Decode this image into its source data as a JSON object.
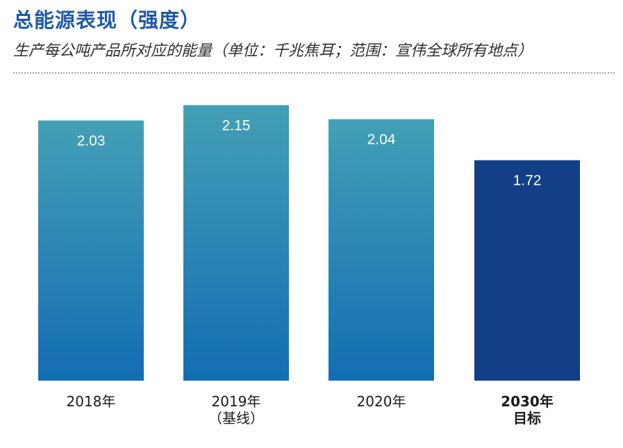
{
  "header": {
    "title": "总能源表现（强度）",
    "subtitle": "生产每公吨产品所对应的能量（单位：千兆焦耳；范围：宣伟全球所有地点）"
  },
  "colors": {
    "title": "#1f5aa6",
    "bar_gradient_top": "#43a0b6",
    "bar_gradient_bottom": "#136db3",
    "target_bar": "#123f86"
  },
  "chart_data": {
    "type": "bar",
    "title": "总能源表现（强度）",
    "subtitle": "生产每公吨产品所对应的能量（单位：千兆焦耳；范围：宣伟全球所有地点）",
    "categories": [
      [
        "2018年"
      ],
      [
        "2019年",
        "（基线）"
      ],
      [
        "2020年"
      ],
      [
        "2030年",
        "目标"
      ]
    ],
    "values": [
      2.03,
      2.15,
      2.04,
      1.72
    ],
    "value_labels": [
      "2.03",
      "2.15",
      "2.04",
      "1.72"
    ],
    "highlight_index": 3,
    "xlabel": "",
    "ylabel": "",
    "grid": false,
    "legend": "none"
  }
}
